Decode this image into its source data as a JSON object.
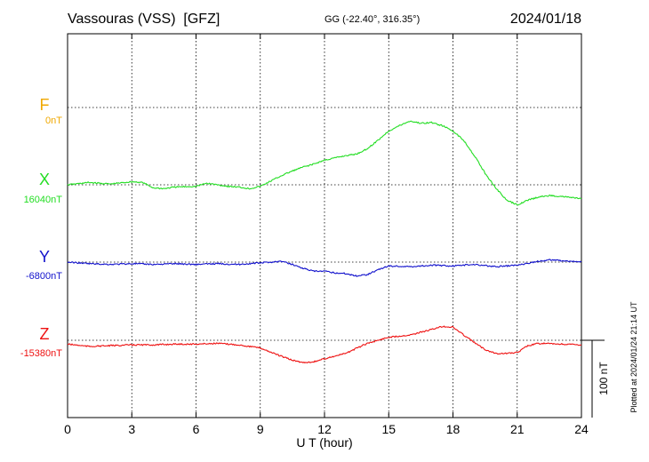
{
  "chart_data": {
    "type": "line",
    "station_title": "Vassouras (VSS)  [GFZ]",
    "coords": "GG (-22.40°, 316.35°)",
    "date": "2024/01/18",
    "xlabel": "U T (hour)",
    "x_ticks": [
      "0",
      "3",
      "6",
      "9",
      "12",
      "15",
      "18",
      "21",
      "24"
    ],
    "xlim": [
      0,
      24
    ],
    "grid": true,
    "scale_label": "100 nT",
    "plotted_note": "Plotted at 2024/01/24 21:14 UT",
    "colors": {
      "F": "#f0a800",
      "X": "#22dd22",
      "Y": "#1111cc",
      "Z": "#ee1111"
    },
    "series": [
      {
        "name": "F",
        "baseline_label": "0nT",
        "x": [],
        "values": []
      },
      {
        "name": "X",
        "baseline_label": "16040nT",
        "x": [
          0,
          1,
          2,
          3,
          3.5,
          4,
          4.5,
          5,
          6,
          6.5,
          7,
          7.5,
          8,
          8.5,
          9,
          9.5,
          10,
          10.5,
          11,
          11.5,
          12,
          12.5,
          13,
          13.5,
          14,
          14.5,
          15,
          15.5,
          16,
          16.5,
          17,
          17.5,
          18,
          18.5,
          19,
          19.5,
          20,
          20.5,
          21,
          21.5,
          22,
          22.5,
          23,
          24
        ],
        "values": [
          16040,
          16043,
          16041,
          16044,
          16043,
          16036,
          16035,
          16037,
          16038,
          16042,
          16040,
          16038,
          16037,
          16035,
          16038,
          16045,
          16052,
          16058,
          16063,
          16067,
          16072,
          16075,
          16078,
          16080,
          16087,
          16098,
          16110,
          16117,
          16123,
          16120,
          16121,
          16117,
          16110,
          16098,
          16078,
          16055,
          16036,
          16020,
          16014,
          16020,
          16024,
          16026,
          16025,
          16022
        ]
      },
      {
        "name": "Y",
        "baseline_label": "-6800nT",
        "x": [
          0,
          0.5,
          1,
          2,
          3,
          4,
          5,
          6,
          7,
          8,
          9,
          9.5,
          10,
          10.5,
          11,
          11.5,
          12,
          12.5,
          13,
          13.5,
          14,
          14.5,
          15,
          16,
          17,
          18,
          19,
          20,
          21,
          22,
          22.5,
          23,
          24
        ],
        "values": [
          -6800,
          -6801,
          -6802,
          -6803,
          -6802,
          -6803,
          -6802,
          -6803,
          -6802,
          -6803,
          -6801,
          -6800,
          -6799,
          -6803,
          -6808,
          -6812,
          -6812,
          -6814,
          -6815,
          -6818,
          -6816,
          -6810,
          -6805,
          -6806,
          -6804,
          -6805,
          -6803,
          -6806,
          -6804,
          -6799,
          -6797,
          -6798,
          -6800
        ]
      },
      {
        "name": "Z",
        "baseline_label": "-15380nT",
        "x": [
          0,
          1,
          2,
          3,
          4,
          5,
          6,
          7,
          8,
          9,
          10,
          10.5,
          11,
          11.5,
          12,
          13,
          14,
          15,
          16,
          17,
          17.5,
          18,
          18.5,
          19,
          19.5,
          20,
          20.5,
          21,
          21.5,
          22,
          23,
          24
        ],
        "values": [
          -15385,
          -15388,
          -15387,
          -15386,
          -15386,
          -15385,
          -15385,
          -15384,
          -15386,
          -15390,
          -15401,
          -15406,
          -15409,
          -15408,
          -15404,
          -15397,
          -15384,
          -15376,
          -15373,
          -15366,
          -15362,
          -15363,
          -15373,
          -15383,
          -15392,
          -15397,
          -15397,
          -15396,
          -15387,
          -15384,
          -15385,
          -15386
        ]
      }
    ]
  }
}
